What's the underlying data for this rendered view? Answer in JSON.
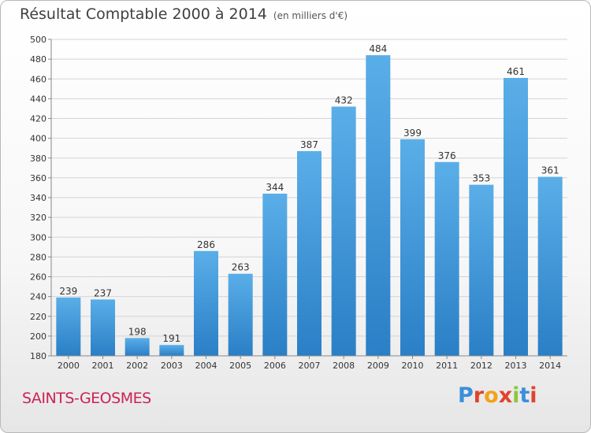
{
  "header": {
    "title": "Résultat Comptable 2000 à 2014",
    "subtitle": "(en milliers d'€)"
  },
  "footer": {
    "commune": "SAINTS-GEOSMES",
    "logo": "Proxiti"
  },
  "colors": {
    "bar_top": "#5aaee8",
    "bar_bottom": "#2a7fc6",
    "commune_text": "#cc2255"
  },
  "chart_data": {
    "type": "bar",
    "title": "Résultat Comptable 2000 à 2014",
    "subtitle": "(en milliers d'€)",
    "categories": [
      "2000",
      "2001",
      "2002",
      "2003",
      "2004",
      "2005",
      "2006",
      "2007",
      "2008",
      "2009",
      "2010",
      "2011",
      "2012",
      "2013",
      "2014"
    ],
    "values": [
      239,
      237,
      198,
      191,
      286,
      263,
      344,
      387,
      432,
      484,
      399,
      376,
      353,
      461,
      361
    ],
    "ylim": [
      180,
      500
    ],
    "yticks": [
      180,
      200,
      220,
      240,
      260,
      280,
      300,
      320,
      340,
      360,
      380,
      400,
      420,
      440,
      460,
      480,
      500
    ],
    "grid": true,
    "legend": "none"
  }
}
